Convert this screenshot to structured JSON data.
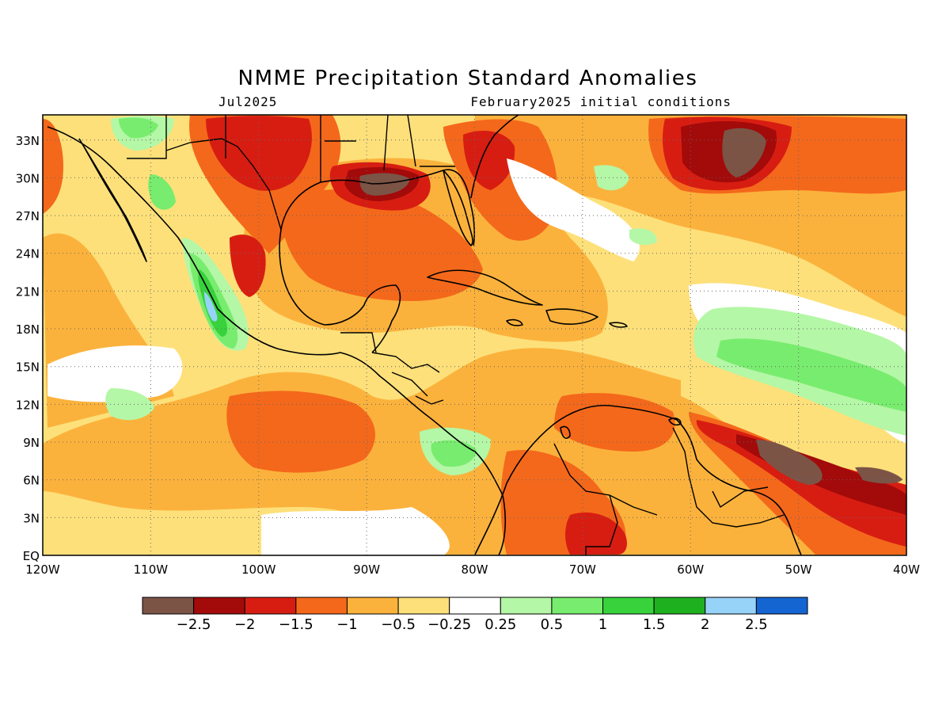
{
  "title": "NMME Precipitation Standard Anomalies",
  "valid_month": "Jul2025",
  "init_note": "February2025 initial conditions",
  "map": {
    "lon_range": [
      -120,
      -40
    ],
    "lat_range": [
      0,
      35
    ],
    "lon_ticks": [
      "120W",
      "110W",
      "100W",
      "90W",
      "80W",
      "70W",
      "60W",
      "50W",
      "40W"
    ],
    "lat_ticks": [
      "EQ",
      "3N",
      "6N",
      "9N",
      "12N",
      "15N",
      "18N",
      "21N",
      "24N",
      "27N",
      "30N",
      "33N"
    ],
    "grid": "dotted"
  },
  "colorbar": {
    "labels": [
      "-2.5",
      "-2",
      "-1.5",
      "-1",
      "-0.5",
      "-0.25",
      "0.25",
      "0.5",
      "1",
      "1.5",
      "2",
      "2.5"
    ],
    "colors": [
      "#7b5446",
      "#a30a0a",
      "#d71d12",
      "#f4681b",
      "#fbb23c",
      "#fde07a",
      "#ffffff",
      "#b4f7a6",
      "#78ec6e",
      "#38d23c",
      "#1fb01f",
      "#97d2f9",
      "#1464d2"
    ]
  },
  "colors": {
    "land_outline": "#000000",
    "water_base": "#fde07a"
  }
}
